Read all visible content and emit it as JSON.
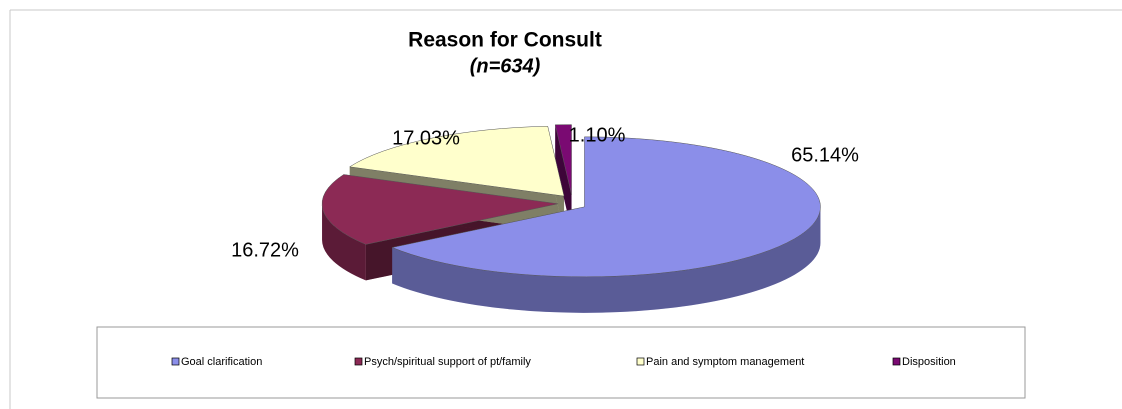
{
  "chart_data": {
    "type": "pie",
    "title": "Reason for Consult",
    "subtitle": "(n=634)",
    "categories": [
      "Goal clarification",
      "Psych/spiritual support of pt/family",
      "Pain and symptom management",
      "Disposition"
    ],
    "values": [
      65.14,
      16.72,
      17.03,
      1.1
    ],
    "value_labels": [
      "65.14%",
      "16.72%",
      "17.03%",
      "1.10%"
    ],
    "colors": [
      "#8b8ee9",
      "#8c2a55",
      "#ffffcc",
      "#7a0a72"
    ],
    "legend": "bottom"
  }
}
